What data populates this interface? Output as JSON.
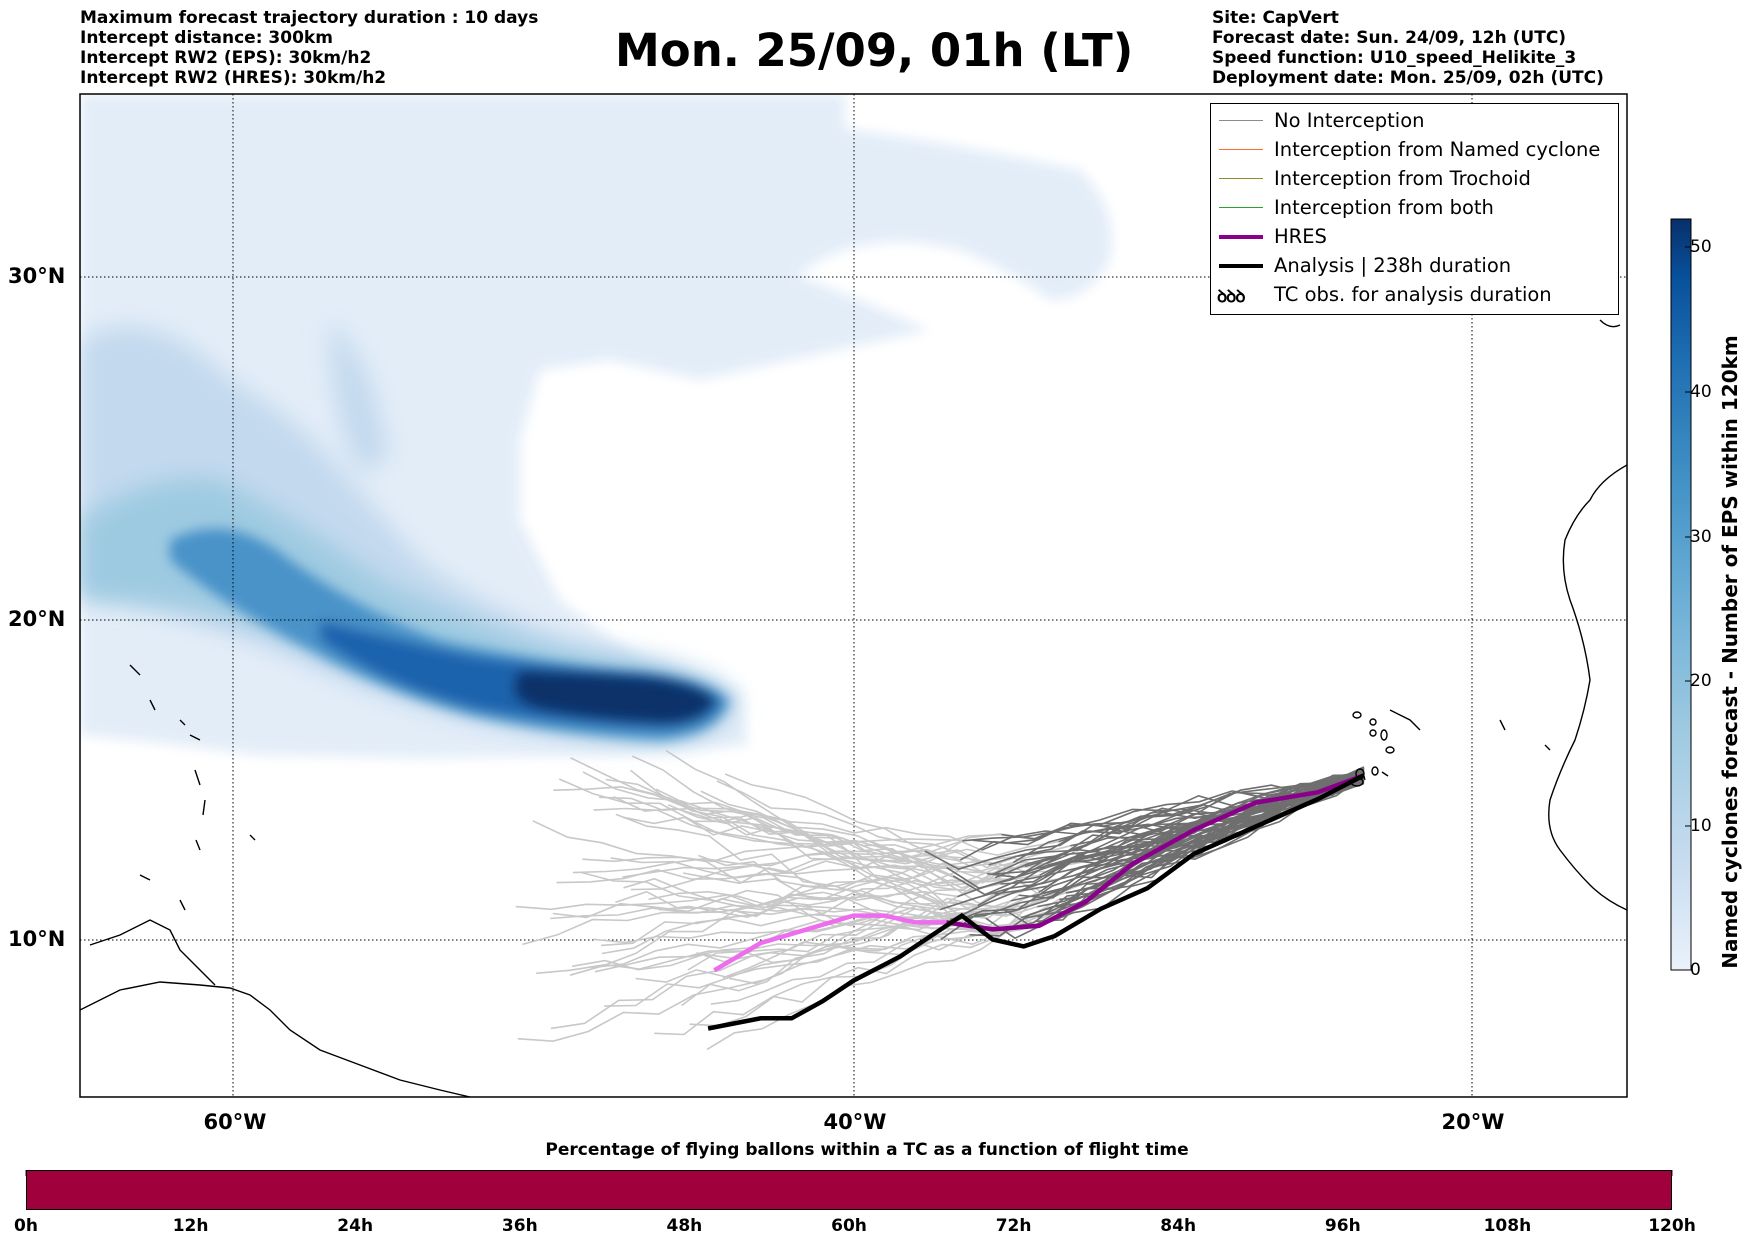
{
  "header_left": [
    "Maximum forecast trajectory duration : 10 days",
    "Intercept distance: 300km",
    "Intercept RW2 (EPS):  30km/h2",
    "Intercept RW2 (HRES): 30km/h2"
  ],
  "title": "Mon. 25/09, 01h (LT)",
  "header_right": [
    "Site: CapVert",
    "Forecast date: Sun. 24/09, 12h (UTC)",
    "Speed function: U10_speed_Helikite_3",
    "Deployment date: Mon. 25/09, 02h (UTC)"
  ],
  "map": {
    "extent": {
      "lon_min": -65,
      "lon_max": -15,
      "lat_min": 5.5,
      "lat_max": 34.8
    },
    "lat_labels": [
      "30°N",
      "20°N",
      "10°N"
    ],
    "lon_labels": [
      "60°W",
      "40°W",
      "20°W"
    ],
    "grid": "dotted",
    "site": {
      "name": "CapVert",
      "lon": -23.5,
      "lat": 14.9
    }
  },
  "legend": {
    "placement": "top-right",
    "items": [
      {
        "label": "No Interception",
        "color": "#8c8c8c",
        "symbol": "line"
      },
      {
        "label": "Interception from Named cyclone",
        "color": "#ff6a33",
        "symbol": "line"
      },
      {
        "label": "Interception from Trochoid",
        "color": "#8b8c2a",
        "symbol": "line"
      },
      {
        "label": "Interception from both",
        "color": "#2ca02c",
        "symbol": "line"
      },
      {
        "label": "HRES",
        "color": "#8b008b",
        "symbol": "thick-line"
      },
      {
        "label": "Analysis | 238h duration",
        "color": "#000000",
        "symbol": "thick-line"
      },
      {
        "label": "TC obs. for analysis duration",
        "color": "#000000",
        "symbol": "tc-icon",
        "glyph": "ꝺꝺꝺ"
      }
    ]
  },
  "colorbar": {
    "title": "Named cyclones forecast - Number of EPS within 120km",
    "min": 0,
    "max": 52,
    "ticks": [
      "0",
      "10",
      "20",
      "30",
      "40",
      "50"
    ],
    "colors": [
      "#eaf2fb",
      "#c6dbef",
      "#9ecae1",
      "#6baed6",
      "#4292c6",
      "#2171b5",
      "#08519c",
      "#08306b"
    ]
  },
  "time_bar": {
    "title": "Percentage of flying ballons within a TC as a function of flight time",
    "color": "#a0003c",
    "ticks": [
      "0h",
      "12h",
      "24h",
      "36h",
      "48h",
      "60h",
      "72h",
      "84h",
      "96h",
      "108h",
      "120h"
    ]
  },
  "chart_data": {
    "type": "map",
    "hres_track": [
      [
        -23.5,
        14.9
      ],
      [
        -25,
        14.4
      ],
      [
        -27,
        14.1
      ],
      [
        -29,
        13.3
      ],
      [
        -31,
        12.3
      ],
      [
        -32.5,
        11.2
      ],
      [
        -34,
        10.5
      ],
      [
        -35.5,
        10.4
      ],
      [
        -37,
        10.6
      ],
      [
        -38,
        10.6
      ],
      [
        -39,
        10.8
      ],
      [
        -40,
        10.8
      ],
      [
        -41.5,
        10.4
      ],
      [
        -43,
        10
      ],
      [
        -44.5,
        9.2
      ]
    ],
    "analysis_track": [
      [
        -23.5,
        14.9
      ],
      [
        -25,
        14.2
      ],
      [
        -27,
        13.4
      ],
      [
        -29,
        12.6
      ],
      [
        -30.5,
        11.6
      ],
      [
        -32,
        11
      ],
      [
        -33.5,
        10.2
      ],
      [
        -34.5,
        9.9
      ],
      [
        -35.5,
        10.1
      ],
      [
        -36.5,
        10.8
      ],
      [
        -37,
        10.5
      ],
      [
        -38.5,
        9.6
      ],
      [
        -40,
        8.9
      ],
      [
        -41,
        8.3
      ],
      [
        -42,
        7.8
      ],
      [
        -43,
        7.8
      ],
      [
        -44.7,
        7.5
      ]
    ],
    "cyclone_density_axis": {
      "lon_start": -65,
      "lat_start": 23,
      "lon_core": -45.5,
      "lat_core": 17.2
    }
  }
}
